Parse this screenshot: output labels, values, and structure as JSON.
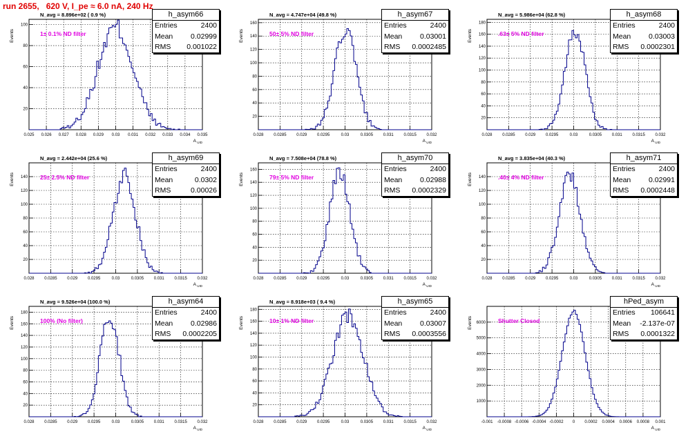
{
  "title": "run 2655,   620 V, I_pe ≈ 6.0 nA, 240 Hz",
  "panels": [
    {
      "name": "h_asym66",
      "entries": "2400",
      "mean": "0.02999",
      "rms": "0.001022",
      "navg": "N_avg = 8.896e+02 ( 0.9 %)",
      "filter": "1± 0.1% ND filter",
      "xlim": [
        0.025,
        0.035
      ],
      "xticks": [
        "0.025",
        "0.026",
        "0.027",
        "0.028",
        "0.029",
        "0.03",
        "0.031",
        "0.032",
        "0.033",
        "0.034",
        "0.035"
      ],
      "ylim": [
        0,
        105
      ],
      "yticks": [
        20,
        40,
        60,
        80,
        100
      ],
      "mu": 0.02999,
      "sigma": 0.00102,
      "peak": 97,
      "nbins": 100,
      "xlabel": "A_UID",
      "ylabel": "Events"
    },
    {
      "name": "h_asym67",
      "entries": "2400",
      "mean": "0.03001",
      "rms": "0.0002485",
      "navg": "N_avg = 4.747e+04 (49.8 %)",
      "filter": "50± 5% ND filter",
      "xlim": [
        0.028,
        0.032
      ],
      "xticks": [
        "0.028",
        "0.0285",
        "0.029",
        "0.0295",
        "0.03",
        "0.0305",
        "0.031",
        "0.0315",
        "0.032"
      ],
      "ylim": [
        0,
        165
      ],
      "yticks": [
        20,
        40,
        60,
        80,
        100,
        120,
        140,
        160
      ],
      "mu": 0.03001,
      "sigma": 0.000249,
      "peak": 150,
      "nbins": 100,
      "xlabel": "A_UID",
      "ylabel": "Events"
    },
    {
      "name": "h_asym68",
      "entries": "2400",
      "mean": "0.03003",
      "rms": "0.0002301",
      "navg": "N_avg = 5.986e+04 (62.8 %)",
      "filter": ".63± 5% ND filter",
      "xlim": [
        0.028,
        0.032
      ],
      "xticks": [
        "0.028",
        "0.0285",
        "0.029",
        "0.0295",
        "0.03",
        "0.0305",
        "0.031",
        "0.0315",
        "0.032"
      ],
      "ylim": [
        0,
        185
      ],
      "yticks": [
        20,
        40,
        60,
        80,
        100,
        120,
        140,
        160,
        180
      ],
      "mu": 0.03003,
      "sigma": 0.00023,
      "peak": 168,
      "nbins": 100,
      "xlabel": "A_UID",
      "ylabel": "Events"
    },
    {
      "name": "h_asym69",
      "entries": "2400",
      "mean": "0.0302",
      "rms": "0.00026",
      "navg": "N_avg = 2.442e+04 (25.6 %)",
      "filter": "25± 2.5% ND filter",
      "xlim": [
        0.028,
        0.032
      ],
      "xticks": [
        "0.028",
        "0.0285",
        "0.029",
        "0.0295",
        "0.03",
        "0.0305",
        "0.031",
        "0.0315",
        "0.032"
      ],
      "ylim": [
        0,
        160
      ],
      "yticks": [
        20,
        40,
        60,
        80,
        100,
        120,
        140
      ],
      "mu": 0.0302,
      "sigma": 0.00026,
      "peak": 142,
      "nbins": 100,
      "xlabel": "A_UID",
      "ylabel": "Events"
    },
    {
      "name": "h_asym70",
      "entries": "2400",
      "mean": "0.02988",
      "rms": "0.0002329",
      "navg": "N_avg = 7.508e+04 (78.8 %)",
      "filter": "79± 5% ND filter",
      "xlim": [
        0.028,
        0.032
      ],
      "xticks": [
        "0.028",
        "0.0285",
        "0.029",
        "0.0295",
        "0.03",
        "0.0305",
        "0.031",
        "0.0315",
        "0.032"
      ],
      "ylim": [
        0,
        170
      ],
      "yticks": [
        20,
        40,
        60,
        80,
        100,
        120,
        140,
        160
      ],
      "mu": 0.02988,
      "sigma": 0.000233,
      "peak": 158,
      "nbins": 100,
      "xlabel": "A_UID",
      "ylabel": "Events"
    },
    {
      "name": "h_asym71",
      "entries": "2400",
      "mean": "0.02991",
      "rms": "0.0002448",
      "navg": "N_avg = 3.835e+04 (40.3 %)",
      "filter": ".40± 4% ND filter",
      "xlim": [
        0.028,
        0.032
      ],
      "xticks": [
        "0.028",
        "0.0285",
        "0.029",
        "0.0295",
        "0.03",
        "0.0305",
        "0.031",
        "0.0315",
        "0.032"
      ],
      "ylim": [
        0,
        160
      ],
      "yticks": [
        20,
        40,
        60,
        80,
        100,
        120,
        140
      ],
      "mu": 0.02991,
      "sigma": 0.000245,
      "peak": 142,
      "nbins": 100,
      "xlabel": "A_UID",
      "ylabel": "Events"
    },
    {
      "name": "h_asym64",
      "entries": "2400",
      "mean": "0.02986",
      "rms": "0.0002205",
      "navg": "N_avg = 9.526e+04 (100.0 %)",
      "filter": "100% (No filter)",
      "xlim": [
        0.028,
        0.032
      ],
      "xticks": [
        "0.028",
        "0.0285",
        "0.029",
        "0.0295",
        "0.03",
        "0.0305",
        "0.031",
        "0.0315",
        "0.032"
      ],
      "ylim": [
        0,
        190
      ],
      "yticks": [
        20,
        40,
        60,
        80,
        100,
        120,
        140,
        160,
        180
      ],
      "mu": 0.02986,
      "sigma": 0.00022,
      "peak": 175,
      "nbins": 100,
      "xlabel": "A_UID",
      "ylabel": "Events"
    },
    {
      "name": "h_asym65",
      "entries": "2400",
      "mean": "0.03007",
      "rms": "0.0003556",
      "navg": "N_avg = 8.918e+03 ( 9.4 %)",
      "filter": "10± 1% ND filter",
      "xlim": [
        0.028,
        0.032
      ],
      "xticks": [
        "0.028",
        "0.0285",
        "0.029",
        "0.0295",
        "0.03",
        "0.0305",
        "0.031",
        "0.0315",
        "0.032"
      ],
      "ylim": [
        0,
        185
      ],
      "yticks": [
        20,
        40,
        60,
        80,
        100,
        120,
        140,
        160,
        180
      ],
      "mu": 0.03007,
      "sigma": 0.000356,
      "peak": 170,
      "nbins": 100,
      "xlabel": "A_UID",
      "ylabel": "Events"
    },
    {
      "name": "hPed_asym",
      "entries": "106641",
      "mean": "-2.137e-07",
      "rms": "0.0001322",
      "navg": "",
      "filter": "Shutter Closed",
      "xlim": [
        -0.001,
        0.001
      ],
      "xticks": [
        "-0.001",
        "-0.0008",
        "-0.0006",
        "-0.0004",
        "-0.0002",
        "0",
        "0.0002",
        "0.0004",
        "0.0006",
        "0.0008",
        "0.001"
      ],
      "ylim": [
        0,
        7000
      ],
      "yticks": [
        1000,
        2000,
        3000,
        4000,
        5000,
        6000
      ],
      "mu": 0.0,
      "sigma": 0.000132,
      "peak": 6700,
      "nbins": 100,
      "xlabel": "A_UID",
      "ylabel": "Events"
    }
  ],
  "stats_labels": {
    "entries": "Entries",
    "mean": "Mean",
    "rms": "RMS"
  }
}
